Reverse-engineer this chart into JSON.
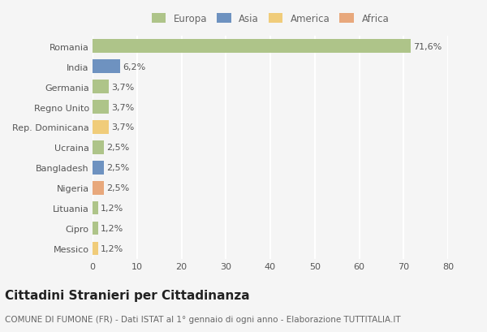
{
  "categories": [
    "Romania",
    "India",
    "Germania",
    "Regno Unito",
    "Rep. Dominicana",
    "Ucraina",
    "Bangladesh",
    "Nigeria",
    "Lituania",
    "Cipro",
    "Messico"
  ],
  "values": [
    71.6,
    6.2,
    3.7,
    3.7,
    3.7,
    2.5,
    2.5,
    2.5,
    1.2,
    1.2,
    1.2
  ],
  "labels": [
    "71,6%",
    "6,2%",
    "3,7%",
    "3,7%",
    "3,7%",
    "2,5%",
    "2,5%",
    "2,5%",
    "1,2%",
    "1,2%",
    "1,2%"
  ],
  "colors": [
    "#aec489",
    "#6e92c0",
    "#aec489",
    "#aec489",
    "#f0cc7a",
    "#aec489",
    "#6e92c0",
    "#e8a87c",
    "#aec489",
    "#aec489",
    "#f0cc7a"
  ],
  "continent_colors": {
    "Europa": "#aec489",
    "Asia": "#6e92c0",
    "America": "#f0cc7a",
    "Africa": "#e8a87c"
  },
  "legend_labels": [
    "Europa",
    "Asia",
    "America",
    "Africa"
  ],
  "xlim": [
    0,
    80
  ],
  "xticks": [
    0,
    10,
    20,
    30,
    40,
    50,
    60,
    70,
    80
  ],
  "title": "Cittadini Stranieri per Cittadinanza",
  "subtitle": "COMUNE DI FUMONE (FR) - Dati ISTAT al 1° gennaio di ogni anno - Elaborazione TUTTITALIA.IT",
  "background_color": "#f5f5f5",
  "grid_color": "#ffffff",
  "bar_height": 0.65,
  "title_fontsize": 11,
  "subtitle_fontsize": 7.5,
  "label_fontsize": 8,
  "tick_fontsize": 8,
  "legend_fontsize": 8.5
}
